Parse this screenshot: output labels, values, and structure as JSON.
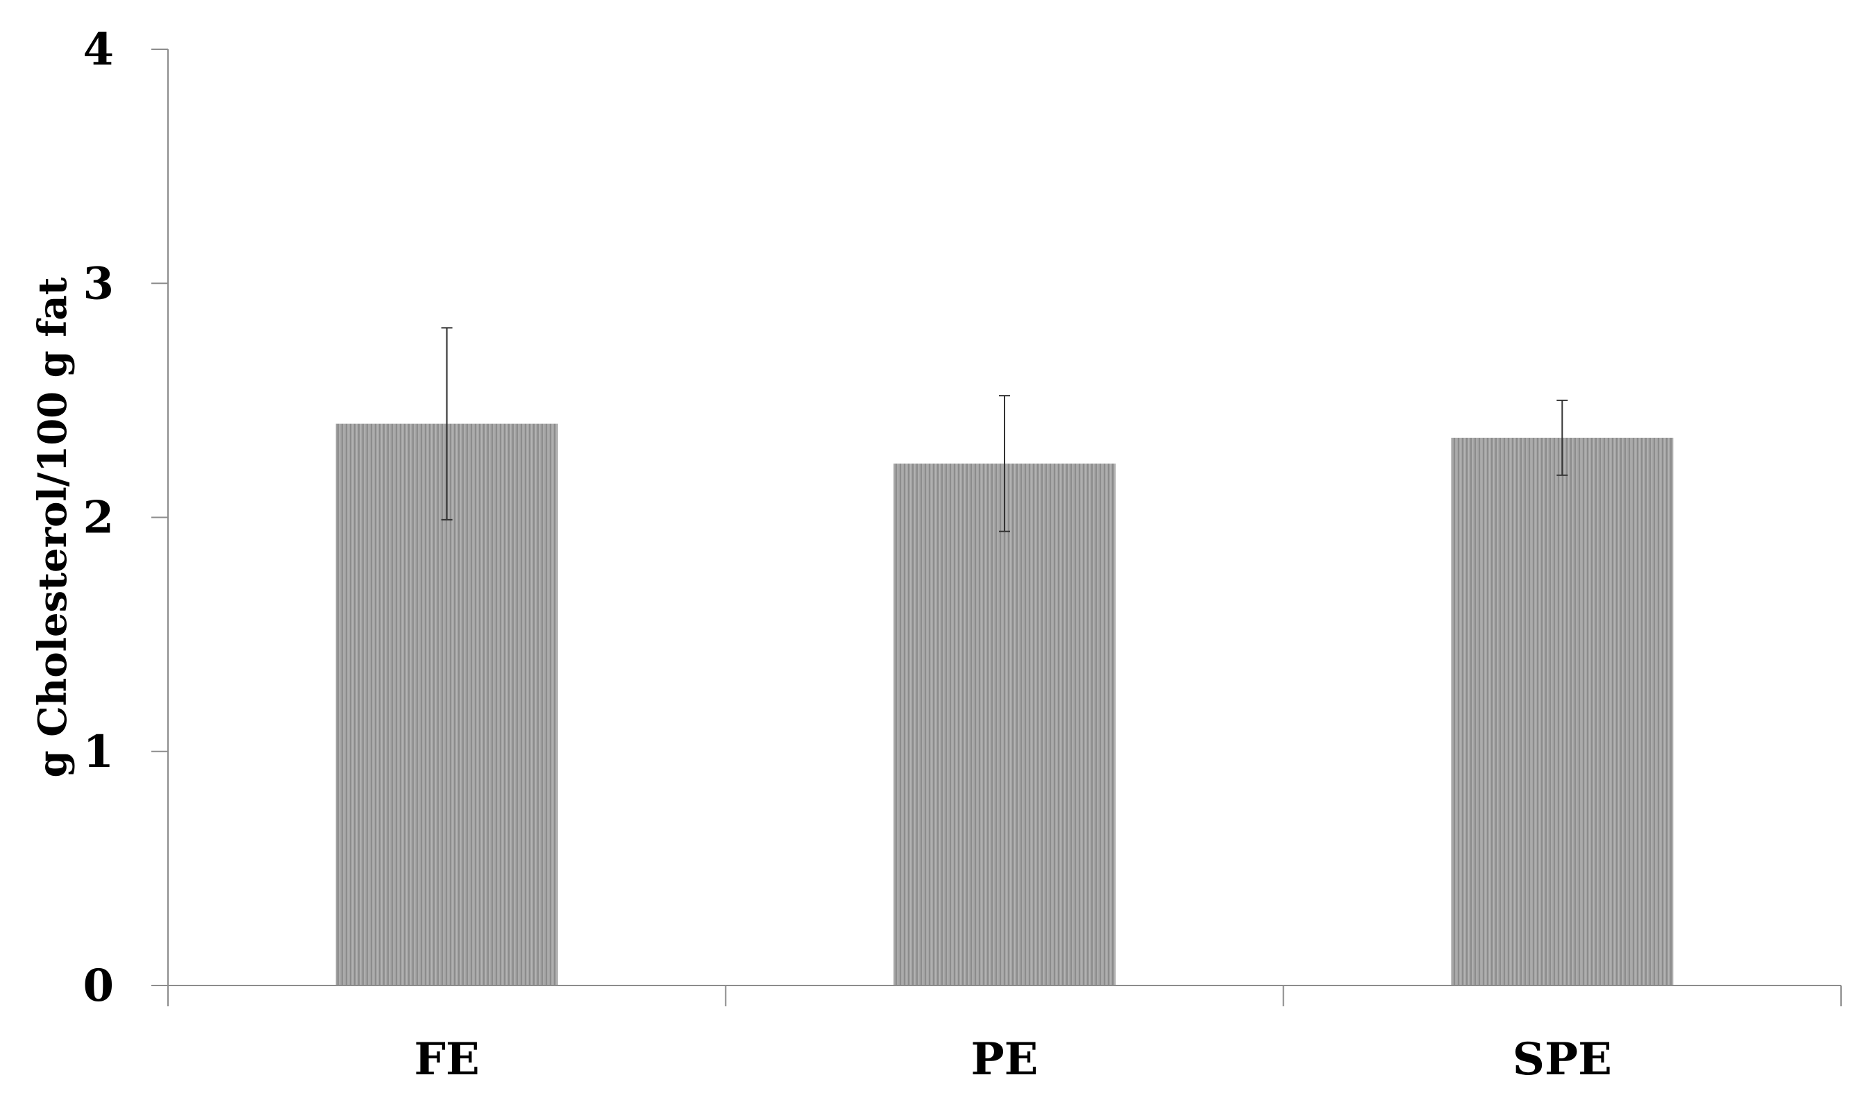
{
  "chart_data": {
    "type": "bar",
    "title": "",
    "xlabel": "",
    "ylabel": "g Cholesterol/100 g fat",
    "categories": [
      "FE",
      "PE",
      "SPE"
    ],
    "values": [
      2.4,
      2.23,
      2.34
    ],
    "error": [
      0.41,
      0.29,
      0.16
    ],
    "ylim": [
      0,
      4
    ],
    "yticks": [
      0,
      1,
      2,
      3,
      4
    ],
    "ytick_labels": [
      "0",
      "1",
      "2",
      "3",
      "4"
    ],
    "grid": false,
    "legend": "none",
    "colors": {
      "bar": "#a6a6a6",
      "bar_hatch": "#8c8c8c",
      "axis": "#8c8c8c",
      "error_bar": "#333333",
      "text": "#000000"
    }
  }
}
